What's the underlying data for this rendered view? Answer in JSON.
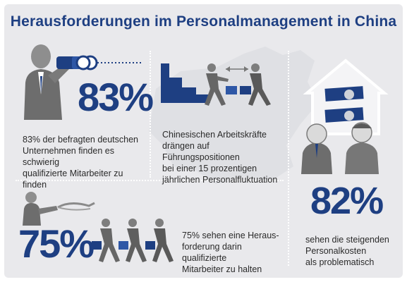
{
  "title": "Herausforderungen im Personalmanagement in China",
  "panels": {
    "recruiting": {
      "percent": "83%",
      "text_lines": [
        "83% der befragten deutschen",
        "Unternehmen finden es schwierig",
        "qualifizierte Mitarbeiter zu finden"
      ],
      "icon": "binoculars-icon"
    },
    "fluctuation": {
      "text_lines": [
        "Chinesischen Arbeitskräfte",
        "drängen auf Führungspositionen",
        "bei einer 15 prozentigen",
        "jährlichen Personalfluktuation"
      ],
      "icon": "staircase-icon"
    },
    "costs": {
      "percent": "82%",
      "text_lines": [
        "sehen die steigenden",
        "Personalkosten",
        "als problematisch"
      ],
      "icon": "money-house-icon"
    },
    "retention": {
      "percent": "75%",
      "text_lines": [
        "75% sehen eine Heraus-",
        "forderung darin qualifizierte",
        "Mitarbeiter zu halten"
      ],
      "icon": "runners-icon"
    }
  },
  "colors": {
    "accent_blue": "#1e3f82",
    "panel_bg": "#e9e9ec",
    "figure_gray": "#777777"
  }
}
